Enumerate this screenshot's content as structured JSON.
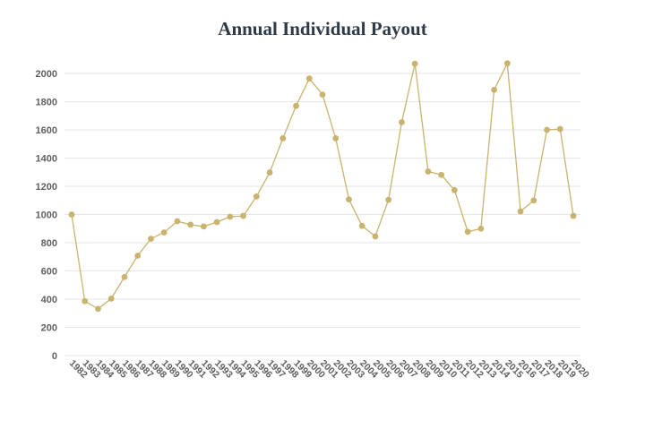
{
  "chart_data": {
    "type": "line",
    "title": "Annual Individual Payout",
    "xlabel": "",
    "ylabel": "",
    "ylim": [
      0,
      2100
    ],
    "yticks": [
      0,
      200,
      400,
      600,
      800,
      1000,
      1200,
      1400,
      1600,
      1800,
      2000
    ],
    "grid": true,
    "legend": "none",
    "color": "#c9b36f",
    "categories": [
      "1982",
      "1983",
      "1984",
      "1985",
      "1986",
      "1987",
      "1988",
      "1989",
      "1990",
      "1991",
      "1992",
      "1993",
      "1994",
      "1995",
      "1996",
      "1997",
      "1998",
      "1999",
      "2000",
      "2001",
      "2002",
      "2003",
      "2004",
      "2005",
      "2006",
      "2007",
      "2008",
      "2009",
      "2010",
      "2011",
      "2012",
      "2013",
      "2014",
      "2015",
      "2016",
      "2017",
      "2018",
      "2019",
      "2020"
    ],
    "values": [
      1000,
      386,
      331,
      404,
      557,
      708,
      828,
      873,
      952,
      928,
      915,
      946,
      984,
      990,
      1128,
      1298,
      1540,
      1770,
      1964,
      1850,
      1540,
      1107,
      919,
      845,
      1104,
      1654,
      2069,
      1305,
      1281,
      1173,
      878,
      900,
      1884,
      2072,
      1022,
      1100,
      1600,
      1606,
      990
    ]
  }
}
